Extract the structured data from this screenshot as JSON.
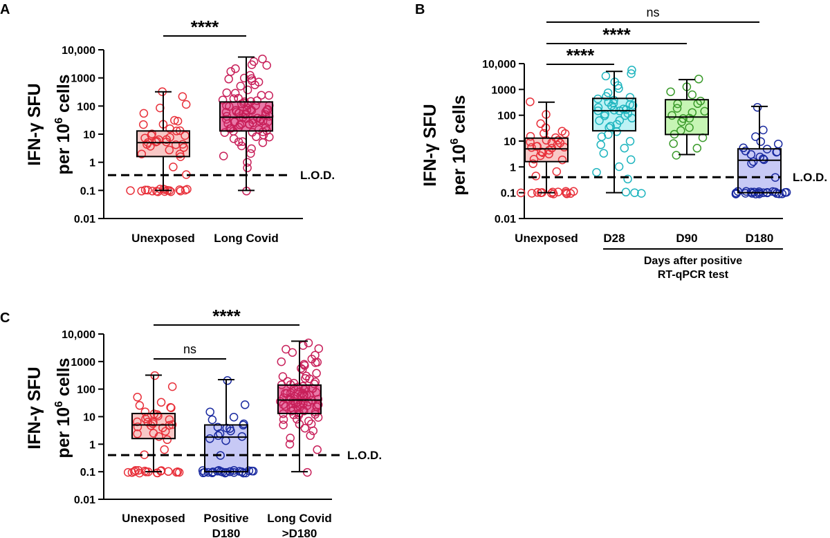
{
  "chart_data": [
    {
      "panel": "A",
      "type": "box",
      "ylabel_line1": "IFN-γ SFU",
      "ylabel_line2_prefix": "per 10",
      "ylabel_sup": "6",
      "ylabel_line2_suffix": " cells",
      "yscale": "log",
      "ylim": [
        0.01,
        10000
      ],
      "yticks": [
        {
          "value": 0.01,
          "label": "0.01"
        },
        {
          "value": 0.1,
          "label": "0.1"
        },
        {
          "value": 1,
          "label": "1"
        },
        {
          "value": 10,
          "label": "10"
        },
        {
          "value": 100,
          "label": "100"
        },
        {
          "value": 1000,
          "label": "1000"
        },
        {
          "value": 10000,
          "label": "10,000"
        }
      ],
      "lod": {
        "value": 0.35,
        "label": "L.O.D."
      },
      "groups": [
        {
          "label": [
            "Unexposed"
          ],
          "color": "#e8303a",
          "fill": "#f8c8c6",
          "min": 0.1,
          "q1": 1.6,
          "median": 5,
          "q3": 13,
          "max": 320,
          "points": [
            0.1,
            0.1,
            0.1,
            0.1,
            0.1,
            0.1,
            0.1,
            0.1,
            0.1,
            0.1,
            0.1,
            0.1,
            0.1,
            0.1,
            0.1,
            0.1,
            0.1,
            0.1,
            0.4,
            0.7,
            1.5,
            1.8,
            2.2,
            2.8,
            3,
            3.5,
            4,
            4.2,
            4.5,
            5,
            5,
            5.5,
            6,
            6.5,
            7,
            7.5,
            8,
            9,
            10,
            11,
            12,
            14,
            16,
            20,
            22,
            26,
            30,
            50,
            80,
            110,
            240,
            300
          ]
        },
        {
          "label": [
            "Long Covid"
          ],
          "color": "#c8205a",
          "fill": "#e879a8",
          "min": 0.1,
          "q1": 13,
          "median": 40,
          "q3": 140,
          "max": 5500,
          "points": [
            0.1,
            0.6,
            1,
            1.5,
            2,
            3,
            4,
            4.5,
            5,
            6,
            7,
            8,
            9,
            10,
            11,
            12,
            13,
            13,
            14,
            15,
            15,
            16,
            18,
            18,
            20,
            20,
            22,
            22,
            24,
            25,
            26,
            28,
            30,
            30,
            32,
            34,
            35,
            36,
            38,
            40,
            40,
            42,
            44,
            45,
            48,
            50,
            52,
            55,
            58,
            60,
            62,
            65,
            70,
            72,
            75,
            80,
            85,
            90,
            95,
            100,
            100,
            110,
            120,
            130,
            140,
            150,
            160,
            170,
            180,
            200,
            220,
            240,
            280,
            320,
            400,
            500,
            600,
            700,
            800,
            900,
            1000,
            1100,
            1300,
            1600,
            2000,
            2500,
            3000,
            4000,
            5000
          ]
        }
      ],
      "comparisons": [
        {
          "g1": 0,
          "g2": 1,
          "label": "****",
          "value": 35000
        }
      ]
    },
    {
      "panel": "B",
      "type": "box",
      "ylabel_line1": "IFN-γ SFU",
      "ylabel_line2_prefix": "per 10",
      "ylabel_sup": "6",
      "ylabel_line2_suffix": " cells",
      "yscale": "log",
      "ylim": [
        0.01,
        10000
      ],
      "yticks": [
        {
          "value": 0.01,
          "label": "0.01"
        },
        {
          "value": 0.1,
          "label": "0.1"
        },
        {
          "value": 1,
          "label": "1"
        },
        {
          "value": 10,
          "label": "10"
        },
        {
          "value": 100,
          "label": "100"
        },
        {
          "value": 1000,
          "label": "1000"
        },
        {
          "value": 10000,
          "label": "10,000"
        }
      ],
      "lod": {
        "value": 0.4,
        "label": "L.O.D."
      },
      "groups": [
        {
          "label": [
            "Unexposed"
          ],
          "color": "#e8303a",
          "fill": "#f8c8c6",
          "min": 0.1,
          "q1": 1.6,
          "median": 5,
          "q3": 13,
          "max": 320,
          "points": [
            0.1,
            0.1,
            0.1,
            0.1,
            0.1,
            0.1,
            0.1,
            0.1,
            0.1,
            0.1,
            0.1,
            0.1,
            0.1,
            0.1,
            0.4,
            0.7,
            1.5,
            1.8,
            2.2,
            2.8,
            3,
            3.5,
            4,
            4.5,
            5,
            5,
            5.5,
            6,
            6.5,
            7,
            8,
            9,
            10,
            11,
            12,
            14,
            16,
            20,
            22,
            26,
            30,
            50,
            110,
            300
          ]
        },
        {
          "label": [
            "D28"
          ],
          "color": "#1fb5bf",
          "fill": "#bdf2f5",
          "min": 0.1,
          "q1": 25,
          "median": 150,
          "q3": 450,
          "max": 5000,
          "points": [
            0.1,
            0.1,
            0.1,
            0.3,
            0.6,
            1,
            2,
            3,
            5,
            8,
            10,
            15,
            20,
            25,
            30,
            40,
            50,
            60,
            70,
            80,
            90,
            100,
            110,
            120,
            130,
            140,
            150,
            160,
            180,
            200,
            220,
            250,
            280,
            300,
            350,
            400,
            450,
            500,
            600,
            800,
            1000,
            1500,
            2000,
            3000,
            4000,
            5000
          ]
        },
        {
          "label": [
            "D90"
          ],
          "color": "#3a9a2a",
          "fill": "#c6f5b4",
          "min": 3,
          "q1": 18,
          "median": 85,
          "q3": 400,
          "max": 2400,
          "points": [
            3,
            5,
            8,
            12,
            18,
            25,
            35,
            50,
            70,
            85,
            100,
            130,
            160,
            200,
            250,
            300,
            400,
            600,
            900,
            1300,
            2400
          ]
        },
        {
          "label": [
            "D180"
          ],
          "color": "#1a2aa0",
          "fill": "#c7c9f5",
          "min": 0.1,
          "q1": 0.1,
          "median": 1.8,
          "q3": 5,
          "max": 220,
          "points": [
            0.1,
            0.1,
            0.1,
            0.1,
            0.1,
            0.1,
            0.1,
            0.1,
            0.1,
            0.1,
            0.1,
            0.1,
            0.1,
            0.1,
            0.1,
            0.1,
            0.1,
            0.1,
            0.1,
            0.1,
            0.1,
            0.1,
            0.1,
            0.4,
            1.2,
            1.5,
            1.8,
            2,
            2.5,
            3,
            3.5,
            4,
            4.5,
            5,
            6,
            8,
            10,
            15,
            30,
            220
          ]
        }
      ],
      "comparisons": [
        {
          "g1": 0,
          "g2": 1,
          "label": "****",
          "value": 18000
        },
        {
          "g1": 0,
          "g2": 2,
          "label": "****",
          "value": 60000
        },
        {
          "g1": 0,
          "g2": 3,
          "label": "ns",
          "value": 200000
        }
      ],
      "group_bracket": {
        "from": 1,
        "to": 3,
        "line1": "Days after positive",
        "line2": "RT-qPCR test"
      }
    },
    {
      "panel": "C",
      "type": "box",
      "ylabel_line1": "IFN-γ SFU",
      "ylabel_line2_prefix": "per 10",
      "ylabel_sup": "6",
      "ylabel_line2_suffix": " cells",
      "yscale": "log",
      "ylim": [
        0.01,
        10000
      ],
      "yticks": [
        {
          "value": 0.01,
          "label": "0.01"
        },
        {
          "value": 0.1,
          "label": "0.1"
        },
        {
          "value": 1,
          "label": "1"
        },
        {
          "value": 10,
          "label": "10"
        },
        {
          "value": 100,
          "label": "100"
        },
        {
          "value": 1000,
          "label": "1000"
        },
        {
          "value": 10000,
          "label": "10,000"
        }
      ],
      "lod": {
        "value": 0.4,
        "label": "L.O.D."
      },
      "groups": [
        {
          "label": [
            "Unexposed"
          ],
          "color": "#e8303a",
          "fill": "#f8c8c6",
          "min": 0.1,
          "q1": 1.6,
          "median": 5,
          "q3": 13,
          "max": 320,
          "points": [
            0.1,
            0.1,
            0.1,
            0.1,
            0.1,
            0.1,
            0.1,
            0.1,
            0.1,
            0.1,
            0.1,
            0.1,
            0.1,
            0.1,
            0.1,
            0.1,
            0.1,
            0.4,
            0.7,
            1.5,
            1.8,
            2.2,
            2.8,
            3,
            3.5,
            4,
            4.5,
            5,
            5,
            5.5,
            6,
            6.5,
            7,
            8,
            9,
            10,
            11,
            12,
            14,
            16,
            20,
            22,
            26,
            30,
            50,
            110,
            300
          ]
        },
        {
          "label": [
            "Positive",
            "D180"
          ],
          "color": "#1a2aa0",
          "fill": "#c7c9f5",
          "min": 0.1,
          "q1": 0.1,
          "median": 1.8,
          "q3": 5,
          "max": 220,
          "points": [
            0.1,
            0.1,
            0.1,
            0.1,
            0.1,
            0.1,
            0.1,
            0.1,
            0.1,
            0.1,
            0.1,
            0.1,
            0.1,
            0.1,
            0.1,
            0.1,
            0.1,
            0.1,
            0.1,
            0.1,
            0.1,
            0.1,
            0.1,
            0.4,
            1.2,
            1.5,
            1.8,
            2,
            2.5,
            3,
            3.5,
            4,
            4.5,
            5,
            6,
            8,
            10,
            15,
            30,
            220
          ]
        },
        {
          "label": [
            "Long Covid",
            ">D180"
          ],
          "color": "#c8205a",
          "fill": "#e879a8",
          "min": 0.1,
          "q1": 13,
          "median": 40,
          "q3": 140,
          "max": 5500,
          "points": [
            0.1,
            0.6,
            1,
            1.5,
            2,
            3,
            4,
            4.5,
            5,
            6,
            7,
            8,
            9,
            10,
            11,
            12,
            13,
            13,
            14,
            15,
            15,
            16,
            18,
            18,
            20,
            20,
            22,
            22,
            24,
            25,
            26,
            28,
            30,
            30,
            32,
            34,
            35,
            36,
            38,
            40,
            40,
            42,
            44,
            45,
            48,
            50,
            52,
            55,
            58,
            60,
            62,
            65,
            70,
            72,
            75,
            80,
            85,
            90,
            95,
            100,
            100,
            110,
            120,
            130,
            140,
            150,
            160,
            170,
            180,
            200,
            220,
            240,
            280,
            320,
            400,
            500,
            600,
            700,
            800,
            900,
            1000,
            1100,
            1300,
            1600,
            2000,
            2500,
            3000,
            4000,
            5000
          ]
        }
      ],
      "comparisons": [
        {
          "g1": 0,
          "g2": 1,
          "label": "ns",
          "value": 1500
        },
        {
          "g1": 0,
          "g2": 2,
          "label": "****",
          "value": 25000
        }
      ]
    }
  ]
}
